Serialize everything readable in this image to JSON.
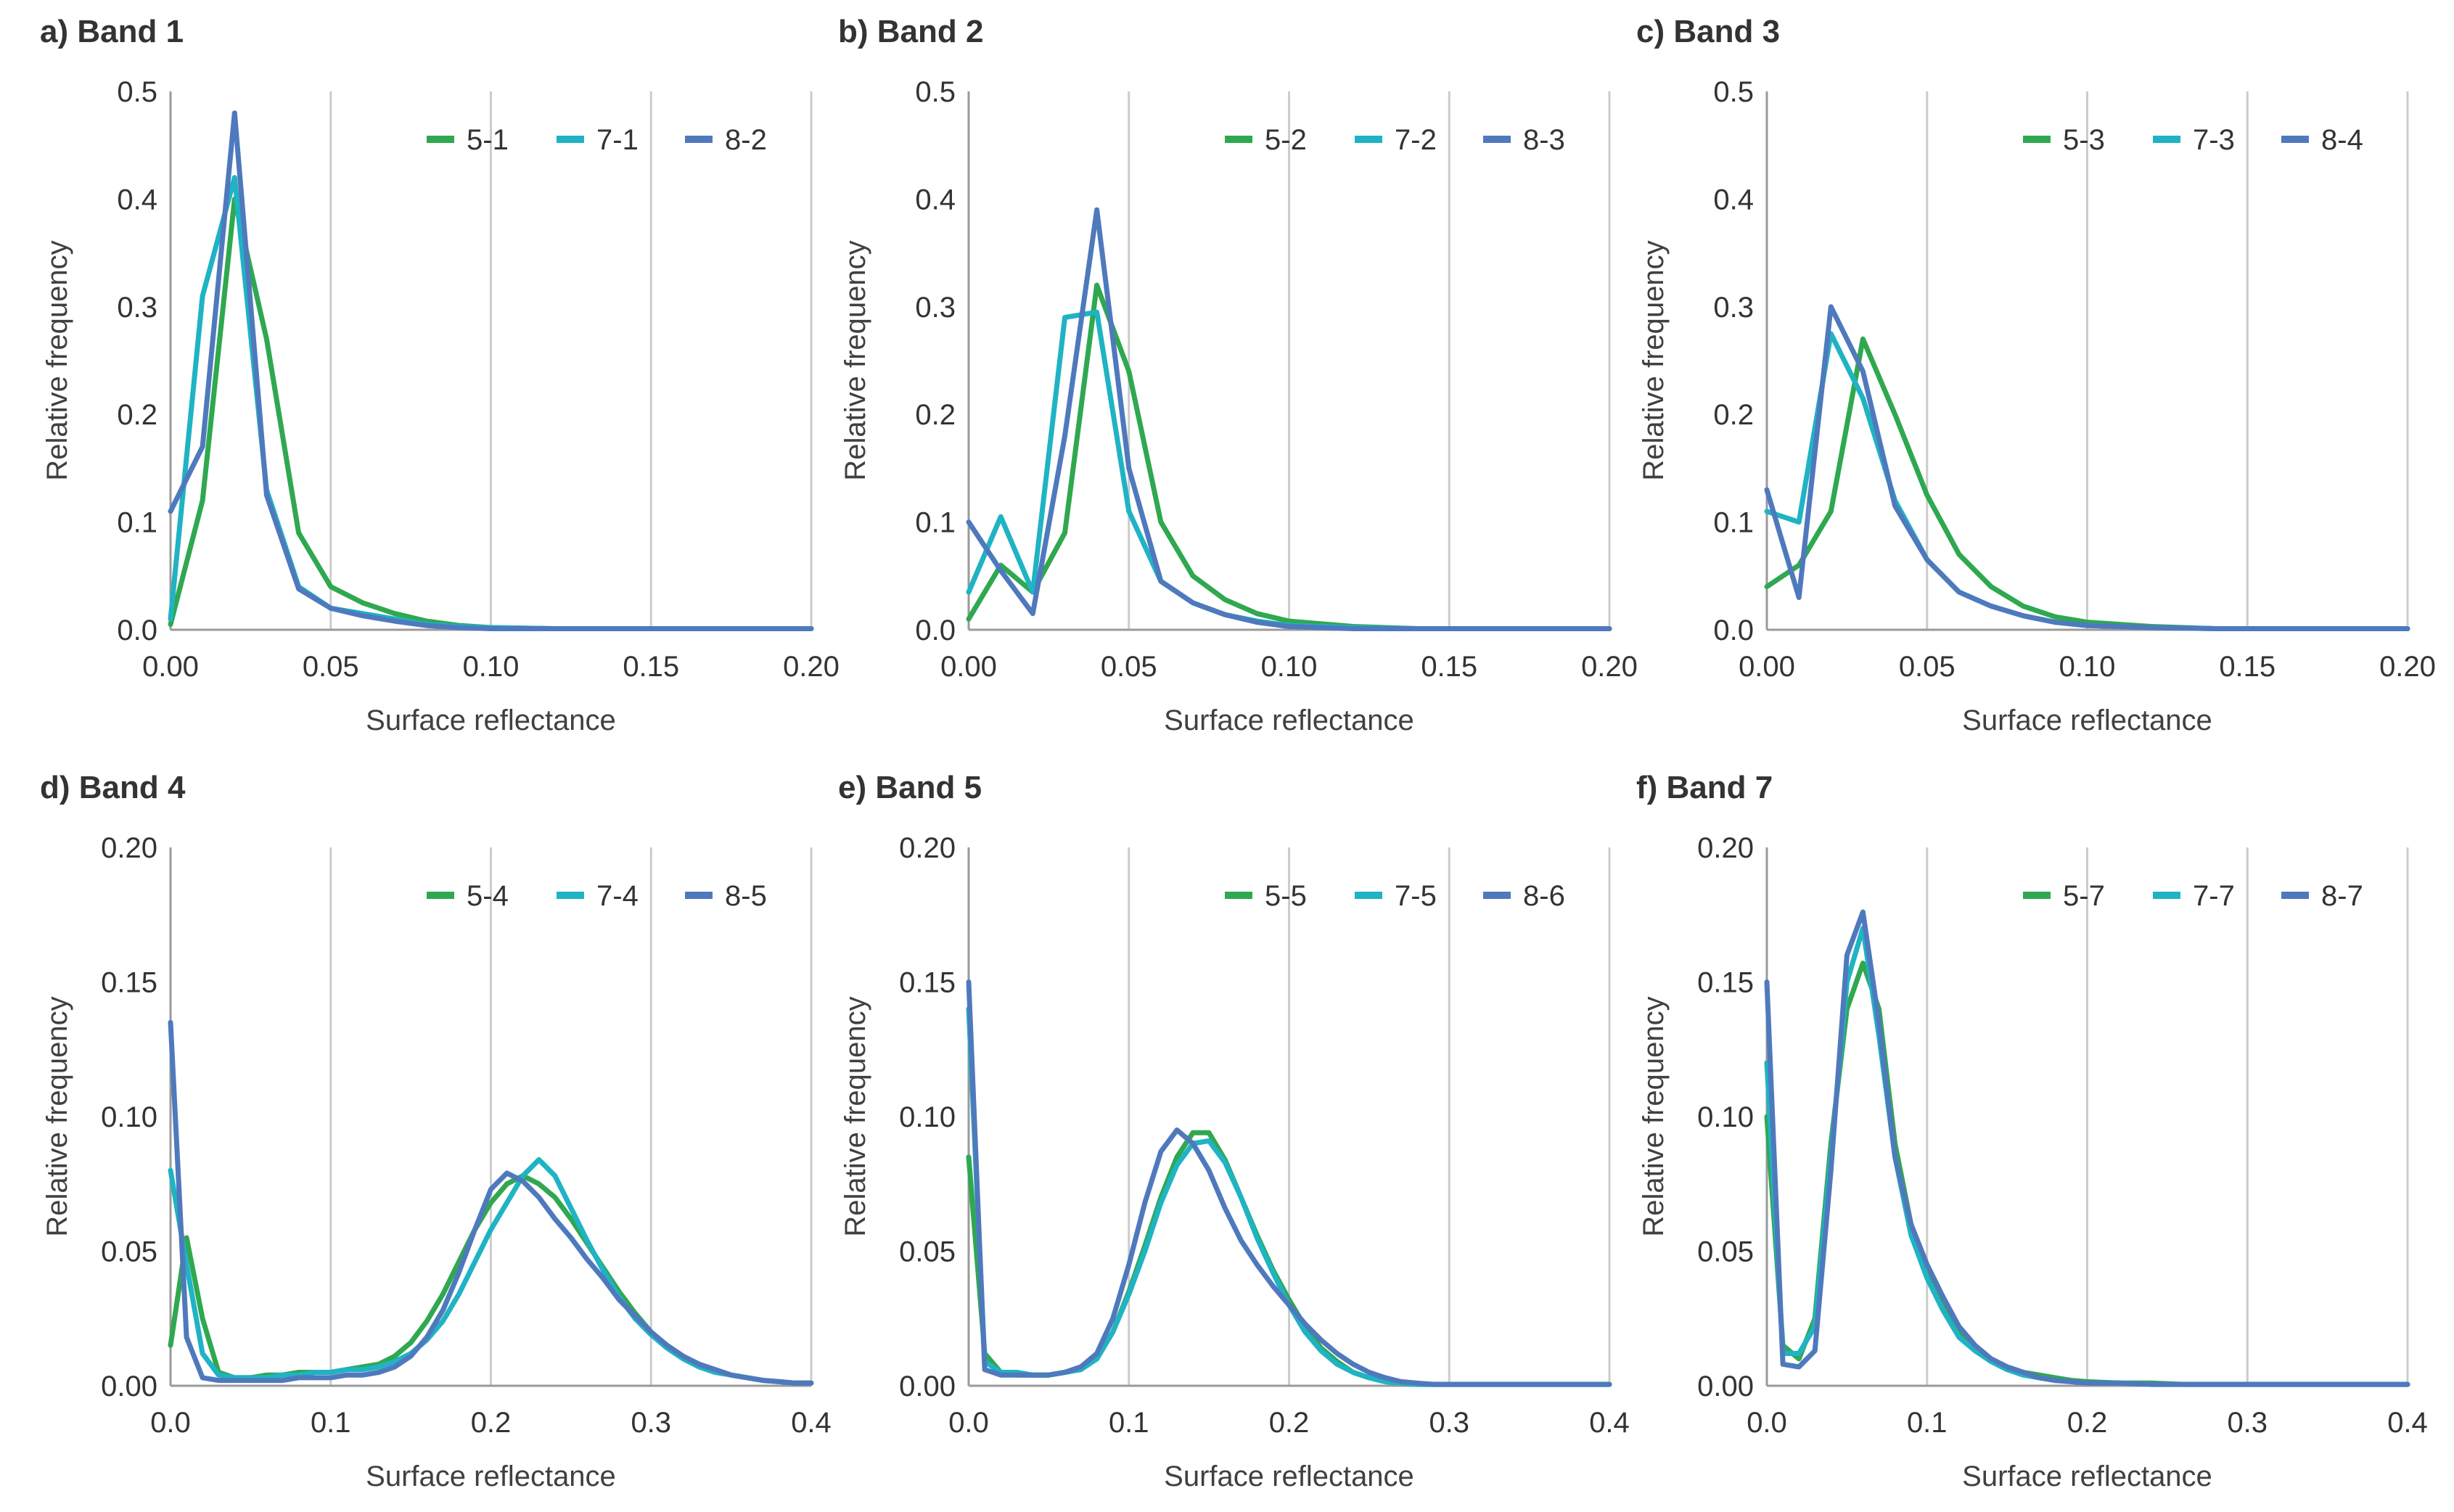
{
  "colors": {
    "green": "#2fa84f",
    "cyan": "#1fb3c4",
    "blue": "#4f79bd",
    "grid": "#cccccc",
    "axis": "#9a9a9a"
  },
  "chart_data": [
    {
      "type": "line",
      "title": "a) Band 1",
      "xlabel": "Surface reflectance",
      "ylabel": "Relative frequency",
      "xlim": [
        0,
        0.2
      ],
      "ylim": [
        0,
        0.5
      ],
      "xticks": [
        0,
        0.05,
        0.1,
        0.15,
        0.2
      ],
      "xtick_labels": [
        "0.00",
        "0.05",
        "0.10",
        "0.15",
        "0.20"
      ],
      "yticks": [
        0,
        0.1,
        0.2,
        0.3,
        0.4,
        0.5
      ],
      "ytick_labels": [
        "0.0",
        "0.1",
        "0.2",
        "0.3",
        "0.4",
        "0.5"
      ],
      "x": [
        0,
        0.01,
        0.02,
        0.03,
        0.04,
        0.05,
        0.06,
        0.07,
        0.08,
        0.09,
        0.1,
        0.12,
        0.14,
        0.16,
        0.18,
        0.2
      ],
      "series": [
        {
          "name": "5-1",
          "color": "#2fa84f",
          "values": [
            0.005,
            0.12,
            0.4,
            0.27,
            0.09,
            0.04,
            0.025,
            0.015,
            0.008,
            0.004,
            0.002,
            0.001,
            0.001,
            0.001,
            0.001,
            0.001
          ]
        },
        {
          "name": "7-1",
          "color": "#1fb3c4",
          "values": [
            0.01,
            0.31,
            0.42,
            0.13,
            0.04,
            0.02,
            0.015,
            0.01,
            0.005,
            0.003,
            0.002,
            0.001,
            0.001,
            0.001,
            0.001,
            0.001
          ]
        },
        {
          "name": "8-2",
          "color": "#4f79bd",
          "values": [
            0.11,
            0.17,
            0.48,
            0.125,
            0.038,
            0.02,
            0.013,
            0.008,
            0.004,
            0.002,
            0.001,
            0.001,
            0.001,
            0.001,
            0.001,
            0.001
          ]
        }
      ]
    },
    {
      "type": "line",
      "title": "b) Band 2",
      "xlabel": "Surface reflectance",
      "ylabel": "Relative frequency",
      "xlim": [
        0,
        0.2
      ],
      "ylim": [
        0,
        0.5
      ],
      "xticks": [
        0,
        0.05,
        0.1,
        0.15,
        0.2
      ],
      "xtick_labels": [
        "0.00",
        "0.05",
        "0.10",
        "0.15",
        "0.20"
      ],
      "yticks": [
        0,
        0.1,
        0.2,
        0.3,
        0.4,
        0.5
      ],
      "ytick_labels": [
        "0.0",
        "0.1",
        "0.2",
        "0.3",
        "0.4",
        "0.5"
      ],
      "x": [
        0,
        0.01,
        0.02,
        0.03,
        0.04,
        0.05,
        0.06,
        0.07,
        0.08,
        0.09,
        0.1,
        0.12,
        0.14,
        0.16,
        0.18,
        0.2
      ],
      "series": [
        {
          "name": "5-2",
          "color": "#2fa84f",
          "values": [
            0.01,
            0.06,
            0.035,
            0.09,
            0.32,
            0.24,
            0.1,
            0.05,
            0.028,
            0.015,
            0.008,
            0.003,
            0.001,
            0.001,
            0.001,
            0.001
          ]
        },
        {
          "name": "7-2",
          "color": "#1fb3c4",
          "values": [
            0.035,
            0.105,
            0.035,
            0.29,
            0.295,
            0.11,
            0.045,
            0.025,
            0.014,
            0.008,
            0.004,
            0.002,
            0.001,
            0.001,
            0.001,
            0.001
          ]
        },
        {
          "name": "8-3",
          "color": "#4f79bd",
          "values": [
            0.1,
            0.055,
            0.015,
            0.18,
            0.39,
            0.15,
            0.045,
            0.025,
            0.014,
            0.007,
            0.003,
            0.001,
            0.001,
            0.001,
            0.001,
            0.001
          ]
        }
      ]
    },
    {
      "type": "line",
      "title": "c) Band 3",
      "xlabel": "Surface reflectance",
      "ylabel": "Relative frequency",
      "xlim": [
        0,
        0.2
      ],
      "ylim": [
        0,
        0.5
      ],
      "xticks": [
        0,
        0.05,
        0.1,
        0.15,
        0.2
      ],
      "xtick_labels": [
        "0.00",
        "0.05",
        "0.10",
        "0.15",
        "0.20"
      ],
      "yticks": [
        0,
        0.1,
        0.2,
        0.3,
        0.4,
        0.5
      ],
      "ytick_labels": [
        "0.0",
        "0.1",
        "0.2",
        "0.3",
        "0.4",
        "0.5"
      ],
      "x": [
        0,
        0.01,
        0.02,
        0.03,
        0.04,
        0.05,
        0.06,
        0.07,
        0.08,
        0.09,
        0.1,
        0.12,
        0.14,
        0.16,
        0.18,
        0.2
      ],
      "series": [
        {
          "name": "5-3",
          "color": "#2fa84f",
          "values": [
            0.04,
            0.06,
            0.11,
            0.27,
            0.2,
            0.125,
            0.07,
            0.04,
            0.022,
            0.012,
            0.007,
            0.003,
            0.001,
            0.001,
            0.001,
            0.001
          ]
        },
        {
          "name": "7-3",
          "color": "#1fb3c4",
          "values": [
            0.11,
            0.1,
            0.275,
            0.215,
            0.12,
            0.065,
            0.035,
            0.022,
            0.013,
            0.007,
            0.004,
            0.002,
            0.001,
            0.001,
            0.001,
            0.001
          ]
        },
        {
          "name": "8-4",
          "color": "#4f79bd",
          "values": [
            0.13,
            0.03,
            0.3,
            0.24,
            0.115,
            0.065,
            0.035,
            0.022,
            0.013,
            0.007,
            0.004,
            0.002,
            0.001,
            0.001,
            0.001,
            0.001
          ]
        }
      ]
    },
    {
      "type": "line",
      "title": "d) Band 4",
      "xlabel": "Surface reflectance",
      "ylabel": "Relative frequency",
      "xlim": [
        0,
        0.4
      ],
      "ylim": [
        0,
        0.2
      ],
      "xticks": [
        0,
        0.1,
        0.2,
        0.3,
        0.4
      ],
      "xtick_labels": [
        "0.0",
        "0.1",
        "0.2",
        "0.3",
        "0.4"
      ],
      "yticks": [
        0,
        0.05,
        0.1,
        0.15,
        0.2
      ],
      "ytick_labels": [
        "0.00",
        "0.05",
        "0.10",
        "0.15",
        "0.20"
      ],
      "x": [
        0,
        0.01,
        0.02,
        0.03,
        0.04,
        0.05,
        0.06,
        0.07,
        0.08,
        0.09,
        0.1,
        0.11,
        0.12,
        0.13,
        0.14,
        0.15,
        0.16,
        0.17,
        0.18,
        0.19,
        0.2,
        0.21,
        0.22,
        0.23,
        0.24,
        0.25,
        0.26,
        0.27,
        0.28,
        0.29,
        0.3,
        0.31,
        0.32,
        0.33,
        0.34,
        0.35,
        0.36,
        0.37,
        0.38,
        0.39,
        0.4
      ],
      "series": [
        {
          "name": "5-4",
          "color": "#2fa84f",
          "values": [
            0.015,
            0.055,
            0.025,
            0.005,
            0.003,
            0.003,
            0.004,
            0.004,
            0.005,
            0.005,
            0.005,
            0.006,
            0.007,
            0.008,
            0.011,
            0.016,
            0.024,
            0.034,
            0.046,
            0.058,
            0.068,
            0.075,
            0.078,
            0.075,
            0.07,
            0.062,
            0.053,
            0.044,
            0.035,
            0.027,
            0.02,
            0.015,
            0.011,
            0.008,
            0.006,
            0.004,
            0.003,
            0.002,
            0.0015,
            0.001,
            0.001
          ]
        },
        {
          "name": "7-4",
          "color": "#1fb3c4",
          "values": [
            0.08,
            0.045,
            0.012,
            0.004,
            0.003,
            0.003,
            0.003,
            0.004,
            0.004,
            0.005,
            0.005,
            0.006,
            0.006,
            0.007,
            0.009,
            0.012,
            0.017,
            0.024,
            0.034,
            0.046,
            0.058,
            0.068,
            0.078,
            0.084,
            0.078,
            0.066,
            0.054,
            0.043,
            0.033,
            0.025,
            0.019,
            0.014,
            0.01,
            0.007,
            0.005,
            0.004,
            0.003,
            0.002,
            0.0015,
            0.001,
            0.001
          ]
        },
        {
          "name": "8-5",
          "color": "#4f79bd",
          "values": [
            0.135,
            0.018,
            0.003,
            0.002,
            0.002,
            0.002,
            0.002,
            0.002,
            0.003,
            0.003,
            0.003,
            0.004,
            0.004,
            0.005,
            0.007,
            0.011,
            0.018,
            0.028,
            0.042,
            0.058,
            0.073,
            0.079,
            0.076,
            0.07,
            0.062,
            0.055,
            0.047,
            0.04,
            0.032,
            0.026,
            0.02,
            0.015,
            0.011,
            0.008,
            0.006,
            0.004,
            0.003,
            0.002,
            0.0015,
            0.001,
            0.001
          ]
        }
      ]
    },
    {
      "type": "line",
      "title": "e) Band 5",
      "xlabel": "Surface reflectance",
      "ylabel": "Relative frequency",
      "xlim": [
        0,
        0.4
      ],
      "ylim": [
        0,
        0.2
      ],
      "xticks": [
        0,
        0.1,
        0.2,
        0.3,
        0.4
      ],
      "xtick_labels": [
        "0.0",
        "0.1",
        "0.2",
        "0.3",
        "0.4"
      ],
      "yticks": [
        0,
        0.05,
        0.1,
        0.15,
        0.2
      ],
      "ytick_labels": [
        "0.00",
        "0.05",
        "0.10",
        "0.15",
        "0.20"
      ],
      "x": [
        0,
        0.01,
        0.02,
        0.03,
        0.04,
        0.05,
        0.06,
        0.07,
        0.08,
        0.09,
        0.1,
        0.11,
        0.12,
        0.13,
        0.14,
        0.15,
        0.16,
        0.17,
        0.18,
        0.19,
        0.2,
        0.21,
        0.22,
        0.23,
        0.24,
        0.25,
        0.26,
        0.27,
        0.28,
        0.29,
        0.3,
        0.32,
        0.34,
        0.36,
        0.38,
        0.4
      ],
      "series": [
        {
          "name": "5-5",
          "color": "#2fa84f",
          "values": [
            0.085,
            0.012,
            0.005,
            0.004,
            0.004,
            0.004,
            0.005,
            0.006,
            0.01,
            0.02,
            0.035,
            0.052,
            0.07,
            0.085,
            0.094,
            0.094,
            0.084,
            0.07,
            0.056,
            0.043,
            0.032,
            0.022,
            0.014,
            0.009,
            0.005,
            0.003,
            0.0015,
            0.001,
            0.0005,
            0.0005,
            0.0005,
            0.0005,
            0.0005,
            0.0005,
            0.0005,
            0.0005
          ]
        },
        {
          "name": "7-5",
          "color": "#1fb3c4",
          "values": [
            0.14,
            0.009,
            0.005,
            0.005,
            0.004,
            0.004,
            0.005,
            0.006,
            0.01,
            0.02,
            0.034,
            0.05,
            0.068,
            0.082,
            0.09,
            0.091,
            0.083,
            0.07,
            0.055,
            0.042,
            0.03,
            0.02,
            0.013,
            0.008,
            0.005,
            0.003,
            0.0015,
            0.001,
            0.0005,
            0.0005,
            0.0005,
            0.0005,
            0.0005,
            0.0005,
            0.0005,
            0.0005
          ]
        },
        {
          "name": "8-6",
          "color": "#4f79bd",
          "values": [
            0.15,
            0.006,
            0.004,
            0.004,
            0.004,
            0.004,
            0.005,
            0.007,
            0.012,
            0.025,
            0.045,
            0.068,
            0.087,
            0.095,
            0.09,
            0.08,
            0.066,
            0.054,
            0.045,
            0.037,
            0.03,
            0.023,
            0.017,
            0.012,
            0.008,
            0.005,
            0.003,
            0.0015,
            0.001,
            0.0005,
            0.0005,
            0.0005,
            0.0005,
            0.0005,
            0.0005,
            0.0005
          ]
        }
      ]
    },
    {
      "type": "line",
      "title": "f) Band 7",
      "xlabel": "Surface reflectance",
      "ylabel": "Relative frequency",
      "xlim": [
        0,
        0.4
      ],
      "ylim": [
        0,
        0.2
      ],
      "xticks": [
        0,
        0.1,
        0.2,
        0.3,
        0.4
      ],
      "xtick_labels": [
        "0.0",
        "0.1",
        "0.2",
        "0.3",
        "0.4"
      ],
      "yticks": [
        0,
        0.05,
        0.1,
        0.15,
        0.2
      ],
      "ytick_labels": [
        "0.00",
        "0.05",
        "0.10",
        "0.15",
        "0.20"
      ],
      "x": [
        0,
        0.01,
        0.02,
        0.03,
        0.04,
        0.05,
        0.06,
        0.07,
        0.08,
        0.09,
        0.1,
        0.11,
        0.12,
        0.13,
        0.14,
        0.15,
        0.16,
        0.17,
        0.18,
        0.19,
        0.2,
        0.22,
        0.24,
        0.26,
        0.28,
        0.3,
        0.32,
        0.34,
        0.36,
        0.38,
        0.4
      ],
      "series": [
        {
          "name": "5-7",
          "color": "#2fa84f",
          "values": [
            0.1,
            0.015,
            0.01,
            0.025,
            0.09,
            0.14,
            0.157,
            0.14,
            0.09,
            0.06,
            0.043,
            0.03,
            0.02,
            0.014,
            0.01,
            0.007,
            0.005,
            0.004,
            0.003,
            0.002,
            0.0015,
            0.001,
            0.001,
            0.0005,
            0.0005,
            0.0005,
            0.0005,
            0.0005,
            0.0005,
            0.0005,
            0.0005
          ]
        },
        {
          "name": "7-7",
          "color": "#1fb3c4",
          "values": [
            0.12,
            0.012,
            0.012,
            0.022,
            0.085,
            0.15,
            0.17,
            0.13,
            0.085,
            0.056,
            0.04,
            0.028,
            0.018,
            0.013,
            0.009,
            0.006,
            0.004,
            0.003,
            0.002,
            0.0015,
            0.001,
            0.001,
            0.0005,
            0.0005,
            0.0005,
            0.0005,
            0.0005,
            0.0005,
            0.0005,
            0.0005,
            0.0005
          ]
        },
        {
          "name": "8-7",
          "color": "#4f79bd",
          "values": [
            0.15,
            0.008,
            0.007,
            0.013,
            0.08,
            0.16,
            0.176,
            0.135,
            0.085,
            0.06,
            0.045,
            0.033,
            0.022,
            0.015,
            0.01,
            0.007,
            0.005,
            0.003,
            0.002,
            0.0015,
            0.001,
            0.001,
            0.0005,
            0.0005,
            0.0005,
            0.0005,
            0.0005,
            0.0005,
            0.0005,
            0.0005,
            0.0005
          ]
        }
      ]
    }
  ]
}
